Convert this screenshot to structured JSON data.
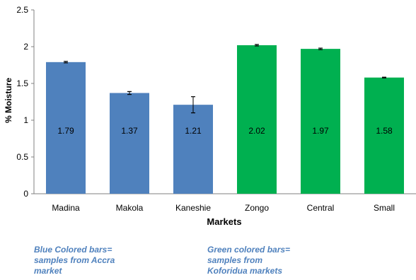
{
  "chart_data": {
    "type": "bar",
    "categories": [
      "Madina",
      "Makola",
      "Kaneshie",
      "Zongo",
      "Central",
      "Small"
    ],
    "values": [
      1.79,
      1.37,
      1.21,
      2.02,
      1.97,
      1.58
    ],
    "error": [
      0.01,
      0.02,
      0.11,
      0.01,
      0.01,
      0.005
    ],
    "value_labels": [
      "1.79",
      "1.37",
      "1.21",
      "2.02",
      "1.97",
      "1.58"
    ],
    "bar_colors": [
      "#4f81bd",
      "#4f81bd",
      "#4f81bd",
      "#00b050",
      "#00b050",
      "#00b050"
    ],
    "xlabel": "Markets",
    "ylabel": "% Moisture",
    "ylim": [
      0,
      2.5
    ],
    "yticks": [
      0,
      0.5,
      1,
      1.5,
      2,
      2.5
    ],
    "ytick_labels": [
      "0",
      "0.5",
      "1",
      "1.5",
      "2",
      "2.5"
    ],
    "grid": false,
    "legend_notes": [
      {
        "lines": [
          "Blue Colored bars=",
          "samples from Accra",
          "market"
        ],
        "color": "#4f81bd"
      },
      {
        "lines": [
          "Green colored bars=",
          "samples from",
          "Koforidua markets"
        ],
        "color": "#4f81bd"
      }
    ]
  }
}
